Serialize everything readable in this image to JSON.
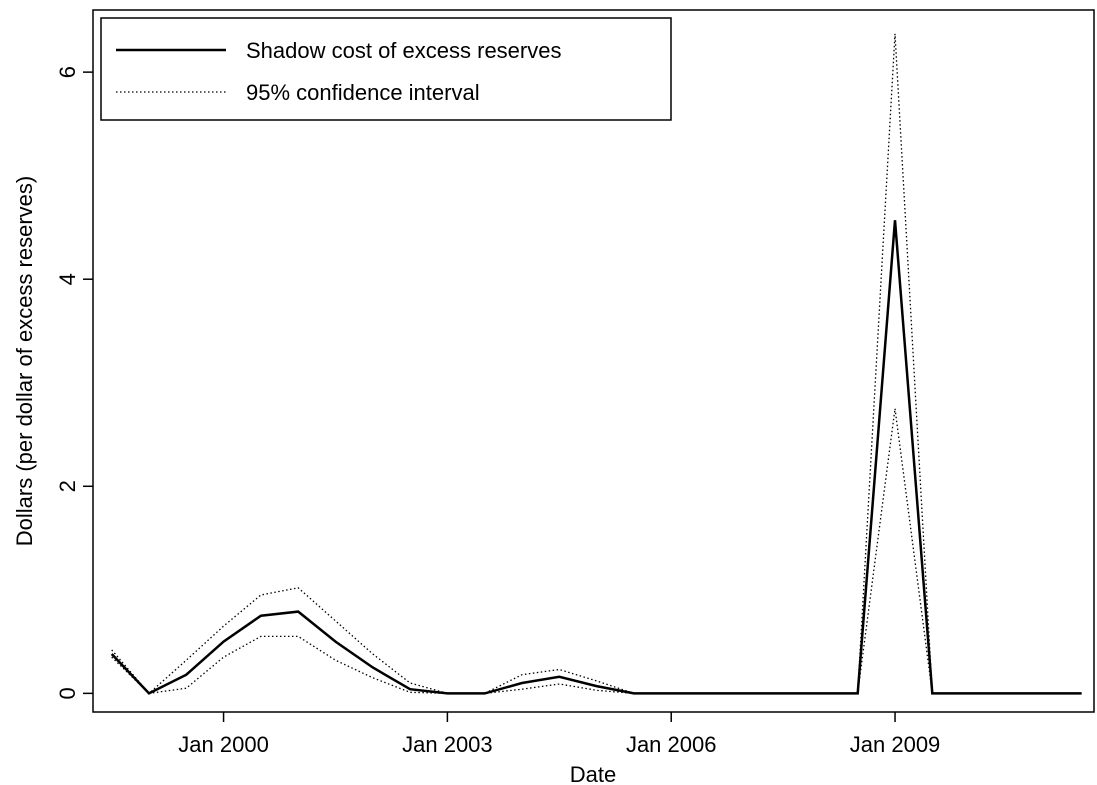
{
  "chart_data": {
    "type": "line",
    "xlabel": "Date",
    "ylabel": "Dollars (per dollar of excess reserves)",
    "x": [
      "1998-07",
      "1999-01",
      "1999-07",
      "2000-01",
      "2000-07",
      "2001-01",
      "2001-07",
      "2002-01",
      "2002-07",
      "2003-01",
      "2003-07",
      "2004-01",
      "2004-07",
      "2005-01",
      "2005-07",
      "2006-01",
      "2006-07",
      "2007-01",
      "2007-07",
      "2008-01",
      "2008-07",
      "2009-01",
      "2009-07",
      "2010-01",
      "2010-07",
      "2011-01",
      "2011-07"
    ],
    "series": [
      {
        "name": "Shadow cost of excess reserves",
        "color": "#000000",
        "values": [
          0.38,
          0,
          0.18,
          0.5,
          0.75,
          0.79,
          0.5,
          0.25,
          0.04,
          0,
          0,
          0.1,
          0.16,
          0.07,
          0,
          0,
          0,
          0,
          0,
          0,
          0,
          4.57,
          0,
          0,
          0,
          0,
          0
        ]
      },
      {
        "name": "95% confidence interval",
        "color": "#000000",
        "upper": [
          0.42,
          0,
          0.32,
          0.65,
          0.95,
          1.02,
          0.7,
          0.38,
          0.1,
          0,
          0,
          0.18,
          0.23,
          0.12,
          0,
          0,
          0,
          0,
          0,
          0,
          0,
          6.37,
          0,
          0,
          0,
          0,
          0
        ],
        "lower": [
          0.35,
          0,
          0.05,
          0.35,
          0.55,
          0.55,
          0.32,
          0.15,
          0.01,
          0,
          0,
          0.04,
          0.09,
          0.03,
          0,
          0,
          0,
          0,
          0,
          0,
          0,
          2.75,
          0,
          0,
          0,
          0,
          0
        ]
      }
    ],
    "xlim": [
      "1998-04",
      "2011-09"
    ],
    "xticks": [
      {
        "value": "2000-01",
        "label": "Jan 2000"
      },
      {
        "value": "2003-01",
        "label": "Jan 2003"
      },
      {
        "value": "2006-01",
        "label": "Jan 2006"
      },
      {
        "value": "2009-01",
        "label": "Jan 2009"
      }
    ],
    "ylim": [
      -0.18,
      6.6
    ],
    "yticks": [
      0,
      2,
      4,
      6
    ],
    "legend": "top-left"
  }
}
